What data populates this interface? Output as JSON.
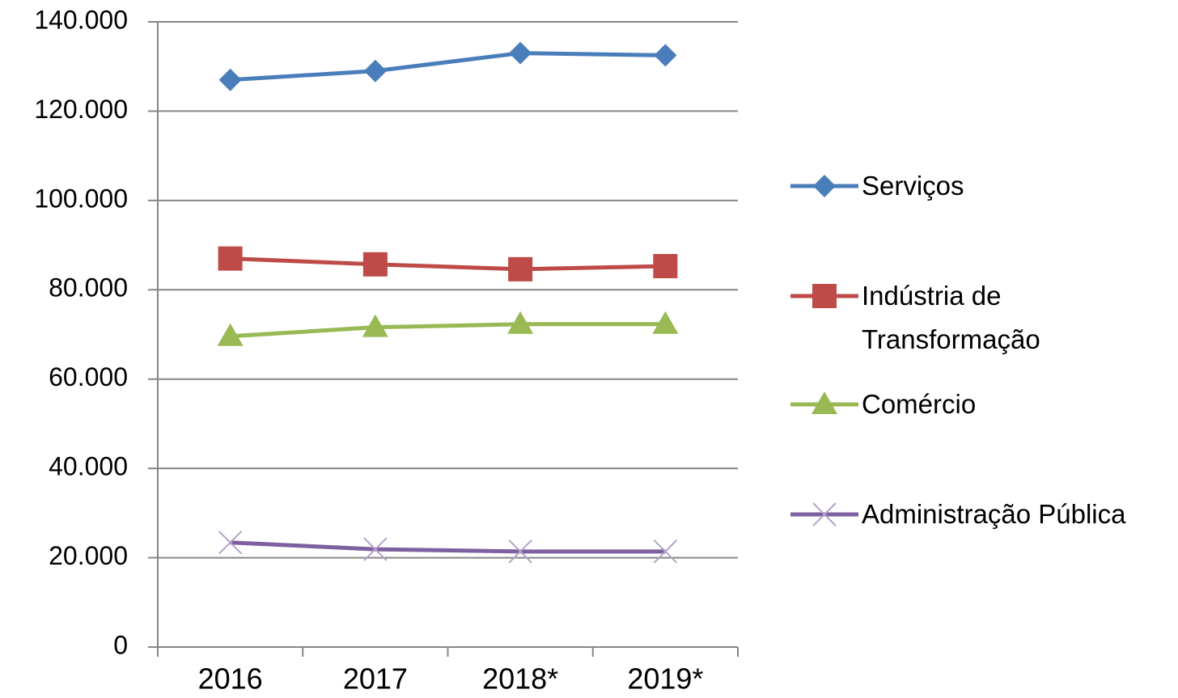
{
  "chart_data": {
    "type": "line",
    "categories": [
      "2016",
      "2017",
      "2018*",
      "2019*"
    ],
    "series": [
      {
        "name": "Serviços",
        "color": "#4a7ebb",
        "marker": "diamond",
        "values": [
          127000,
          129000,
          133000,
          132500
        ]
      },
      {
        "name": "Indústria de Transformação",
        "color": "#be4b48",
        "marker": "square",
        "values": [
          87000,
          85700,
          84600,
          85300
        ]
      },
      {
        "name": "Comércio",
        "color": "#98b954",
        "marker": "triangle",
        "values": [
          69600,
          71600,
          72300,
          72300
        ]
      },
      {
        "name": "Administração Pública",
        "color": "#7d60a0",
        "marker": "x",
        "values": [
          23400,
          21900,
          21400,
          21400
        ]
      }
    ],
    "ylim": [
      0,
      140000
    ],
    "yticks": [
      0,
      {
        "value": 20000,
        "label": "20.000"
      },
      {
        "value": 40000,
        "label": "40.000"
      },
      {
        "value": 60000,
        "label": "60.000"
      },
      {
        "value": 80000,
        "label": "80.000"
      },
      {
        "value": 100000,
        "label": "100.000"
      },
      {
        "value": 120000,
        "label": "120.000"
      },
      {
        "value": 140000,
        "label": "140.000"
      }
    ],
    "grid": true,
    "legend": "right"
  }
}
